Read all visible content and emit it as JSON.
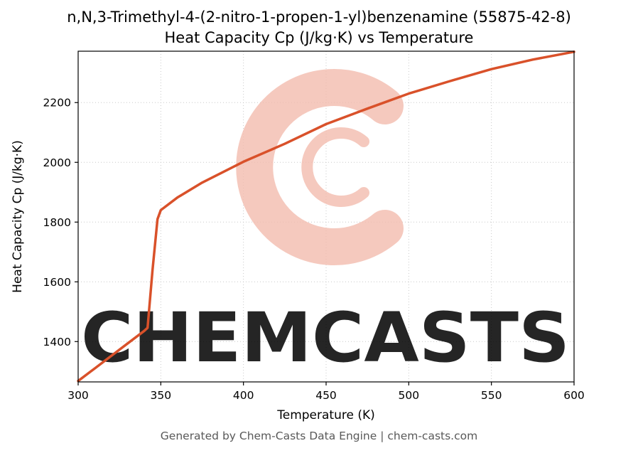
{
  "header": {
    "title_line1": "n,N,3-Trimethyl-4-(2-nitro-1-propen-1-yl)benzenamine (55875-42-8)",
    "title_line2": "Heat Capacity Cp (J/kg·K) vs Temperature"
  },
  "footer": {
    "text": "Generated by Chem-Casts Data Engine | chem-casts.com"
  },
  "watermark": {
    "text": "CHEMCASTS",
    "color": "#f3bcae"
  },
  "chart_data": {
    "type": "line",
    "title": "n,N,3-Trimethyl-4-(2-nitro-1-propen-1-yl)benzenamine (55875-42-8) Heat Capacity Cp (J/kg·K) vs Temperature",
    "xlabel": "Temperature (K)",
    "ylabel": "Heat Capacity Cp (J/kg·K)",
    "xlim": [
      300,
      600
    ],
    "ylim": [
      1265,
      2372
    ],
    "xticks": [
      300,
      350,
      400,
      450,
      500,
      550,
      600
    ],
    "yticks": [
      1400,
      1600,
      1800,
      2000,
      2200
    ],
    "grid": true,
    "legend": "none",
    "line_color": "#d9512a",
    "series": [
      {
        "name": "Heat Capacity Cp",
        "x": [
          300,
          310,
          320,
          330,
          340,
          342,
          345,
          348,
          350,
          360,
          375,
          400,
          425,
          450,
          475,
          500,
          525,
          550,
          575,
          600
        ],
        "y": [
          1268,
          1310,
          1352,
          1394,
          1436,
          1446,
          1640,
          1810,
          1840,
          1882,
          1932,
          2002,
          2062,
          2128,
          2180,
          2230,
          2272,
          2312,
          2344,
          2370
        ]
      }
    ]
  }
}
